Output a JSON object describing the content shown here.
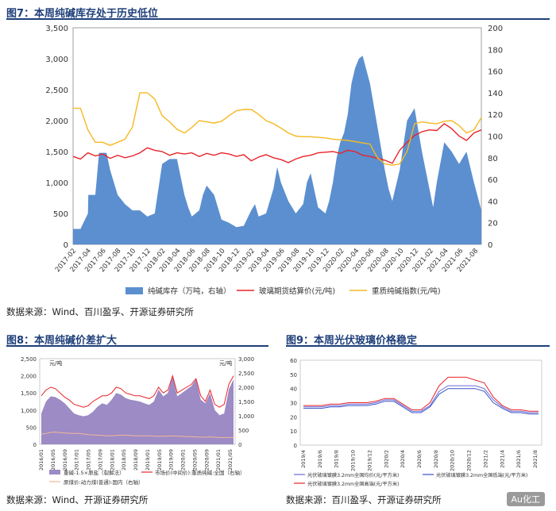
{
  "fig7": {
    "title": "图7：本周纯碱库存处于历史低位",
    "source": "数据来源：Wind、百川盈孚、开源证券研究所"
  },
  "fig8": {
    "title": "图8：本周纯碱价差扩大",
    "source": "数据来源：Wind、开源证券研究所"
  },
  "fig9": {
    "title": "图9：本周光伏玻璃价格稳定",
    "source": "数据来源：百川盈孚、开源证券研究所"
  },
  "watermark": "Au化工",
  "colors": {
    "title": "#1e3f7a",
    "inventory": "#5b8fd0",
    "glass": "#e8242a",
    "soda": "#f5b921",
    "spread": "#9c8bc4",
    "fig8line": "#e8242a",
    "coal": "#f2b79a"
  },
  "chart_data": [
    {
      "id": "fig7",
      "type": "area+line",
      "title": "本周纯碱库存处于历史低位",
      "y_left": {
        "min": 0,
        "max": 3500,
        "ticks": [
          "0",
          "500",
          "1,000",
          "1,500",
          "2,000",
          "2,500",
          "3,000",
          "3,500"
        ]
      },
      "y_right": {
        "min": 0,
        "max": 200,
        "ticks": [
          "0",
          "20",
          "40",
          "60",
          "80",
          "100",
          "120",
          "140",
          "160",
          "180",
          "200"
        ]
      },
      "x_labels": [
        "2017-02",
        "2017-04",
        "2017-06",
        "2017-08",
        "2017-10",
        "2017-12",
        "2018-02",
        "2018-04",
        "2018-06",
        "2018-08",
        "2018-10",
        "2018-12",
        "2019-02",
        "2019-04",
        "2019-06",
        "2019-08",
        "2019-10",
        "2019-12",
        "2020-02",
        "2020-04",
        "2020-06",
        "2020-08",
        "2020-10",
        "2020-12",
        "2021-02",
        "2021-04",
        "2021-06",
        "2021-08"
      ],
      "x_range": [
        0,
        55
      ],
      "series": [
        {
          "name": "纯碱库存（万吨，右轴）",
          "kind": "area",
          "axis": "left",
          "x": [
            0,
            1,
            2,
            2.05,
            3,
            3.5,
            4,
            4.5,
            5,
            6,
            7,
            8,
            9,
            10,
            11,
            11.5,
            12,
            13,
            14,
            15,
            15.5,
            16,
            17,
            17.5,
            18,
            19,
            20,
            21,
            22,
            23,
            24,
            24.5,
            25,
            26,
            27,
            27.5,
            28,
            29,
            30,
            31,
            31.5,
            32,
            33,
            34,
            34.5,
            35,
            35.5,
            36,
            36.5,
            37,
            37.5,
            38,
            38.5,
            39,
            40,
            41,
            42,
            42.5,
            43,
            44,
            45,
            46,
            47,
            48,
            48.5,
            49,
            50,
            51,
            52,
            53,
            54,
            55
          ],
          "y": [
            250,
            250,
            500,
            800,
            800,
            1480,
            1480,
            1480,
            1200,
            800,
            650,
            550,
            550,
            450,
            500,
            900,
            1300,
            1380,
            1380,
            800,
            600,
            450,
            550,
            800,
            950,
            800,
            400,
            350,
            280,
            300,
            550,
            650,
            450,
            500,
            900,
            1250,
            1000,
            700,
            500,
            650,
            1000,
            1150,
            600,
            500,
            700,
            1000,
            1400,
            1650,
            1800,
            2100,
            2600,
            2850,
            3000,
            3050,
            2600,
            1900,
            1200,
            900,
            700,
            1200,
            2000,
            2200,
            1500,
            900,
            600,
            1000,
            1650,
            1500,
            1300,
            1500,
            1000,
            550
          ]
        },
        {
          "name": "玻璃期货结算价(元/吨)",
          "kind": "line",
          "axis": "left",
          "x": [
            0,
            1,
            2,
            3,
            4,
            5,
            6,
            7,
            8,
            9,
            10,
            11,
            12,
            13,
            14,
            15,
            16,
            17,
            18,
            19,
            20,
            21,
            22,
            23,
            24,
            25,
            26,
            27,
            28,
            29,
            30,
            31,
            32,
            33,
            34,
            35,
            36,
            37,
            38,
            39,
            40,
            41,
            42,
            43,
            44,
            45,
            46,
            47,
            48,
            49,
            50,
            51,
            52,
            53,
            54,
            55
          ],
          "y": [
            1420,
            1380,
            1480,
            1430,
            1460,
            1390,
            1440,
            1400,
            1430,
            1480,
            1560,
            1520,
            1500,
            1440,
            1480,
            1460,
            1480,
            1420,
            1470,
            1440,
            1480,
            1460,
            1420,
            1450,
            1350,
            1410,
            1450,
            1400,
            1370,
            1320,
            1380,
            1420,
            1440,
            1480,
            1490,
            1500,
            1470,
            1520,
            1500,
            1440,
            1420,
            1390,
            1360,
            1310,
            1520,
            1650,
            1760,
            1820,
            1850,
            1840,
            1950,
            1870,
            1750,
            1680,
            1800,
            1850
          ]
        },
        {
          "name": "重质纯碱指数(元/吨)",
          "kind": "line",
          "axis": "left",
          "x": [
            0,
            1,
            2,
            3,
            4,
            5,
            6,
            7,
            8,
            9,
            10,
            11,
            12,
            13,
            14,
            15,
            16,
            17,
            18,
            19,
            20,
            21,
            22,
            23,
            24,
            25,
            26,
            27,
            28,
            29,
            30,
            31,
            32,
            33,
            34,
            35,
            36,
            37,
            38,
            39,
            40,
            41,
            42,
            43,
            44,
            45,
            46,
            47,
            48,
            49,
            50,
            51,
            52,
            53,
            54,
            55
          ],
          "y": [
            2200,
            2200,
            1850,
            1650,
            1650,
            1600,
            1650,
            1700,
            1900,
            2450,
            2450,
            2350,
            2080,
            1980,
            1860,
            1800,
            1890,
            2000,
            1980,
            1960,
            1990,
            2080,
            2160,
            2180,
            2180,
            2100,
            2000,
            1950,
            1880,
            1800,
            1750,
            1740,
            1740,
            1730,
            1720,
            1700,
            1690,
            1680,
            1660,
            1640,
            1620,
            1400,
            1300,
            1280,
            1300,
            1500,
            1950,
            1980,
            1960,
            1950,
            1990,
            2000,
            1920,
            1800,
            1850,
            2050
          ]
        }
      ]
    },
    {
      "id": "fig8",
      "type": "area+line",
      "unit_left": "元/吨",
      "unit_right": "元/吨",
      "y_left": {
        "min": 0,
        "max": 2500,
        "ticks": [
          "0",
          "500",
          "1,000",
          "1,500",
          "2,000",
          "2,500"
        ]
      },
      "y_right": {
        "min": 0,
        "max": 3000,
        "ticks": [
          "0",
          "500",
          "1,000",
          "1,500",
          "2,000",
          "2,500",
          "3,000"
        ]
      },
      "x_labels": [
        "2016/01",
        "2016/05",
        "2016/09",
        "2017/01",
        "2017/05",
        "2017/09",
        "2018/01",
        "2018/05",
        "2018/09",
        "2019/01",
        "2019/05",
        "2019/09",
        "2020/01",
        "2020/05",
        "2020/09",
        "2021/01",
        "2021/05"
      ],
      "series": [
        {
          "name": "重碱-1.5×原盐（裂解法）",
          "kind": "area",
          "values": [
            900,
            1250,
            1400,
            1380,
            1300,
            1200,
            1050,
            900,
            850,
            820,
            850,
            950,
            1100,
            1200,
            1150,
            1300,
            1500,
            1450,
            1350,
            1300,
            1280,
            1250,
            1200,
            1150,
            1250,
            1600,
            1400,
            1500,
            2000,
            1400,
            1500,
            1600,
            1700,
            1900,
            1300,
            1200,
            1500,
            1000,
            850,
            900,
            1600,
            1900
          ]
        },
        {
          "name": "市场价(中间价):重质纯碱:全国（右轴）",
          "kind": "line",
          "values": [
            1700,
            1900,
            2000,
            1950,
            1800,
            1650,
            1550,
            1400,
            1350,
            1300,
            1350,
            1500,
            1600,
            1700,
            1700,
            1800,
            2000,
            1950,
            1800,
            1750,
            1700,
            1700,
            1650,
            1600,
            1700,
            2000,
            1800,
            1900,
            2400,
            1800,
            1900,
            2000,
            2100,
            2300,
            1700,
            1500,
            1900,
            1400,
            1300,
            1400,
            2100,
            2400
          ]
        },
        {
          "name": "原煤价:动力煤(普通):国内（右轴）",
          "kind": "line",
          "values": [
            350,
            380,
            420,
            430,
            410,
            400,
            390,
            380,
            380,
            360,
            340,
            330,
            320,
            310,
            300,
            300,
            310,
            320,
            320,
            310,
            300,
            300,
            300,
            300,
            290,
            280,
            280,
            290,
            300,
            290,
            280,
            270,
            270,
            260,
            250,
            250,
            260,
            250,
            240,
            240,
            240,
            240
          ]
        }
      ]
    },
    {
      "id": "fig9",
      "type": "line",
      "y": {
        "min": 0,
        "max": 60,
        "ticks": [
          "0",
          "10",
          "20",
          "30",
          "40",
          "50",
          "60"
        ]
      },
      "x_labels": [
        "2019/4",
        "2019/6",
        "2019/8",
        "2019/10",
        "2019/12",
        "2020/2",
        "2020/4",
        "2020/6",
        "2020/8",
        "2020/10",
        "2020/12",
        "2021/2",
        "2021/4",
        "2021/6",
        "2021/8"
      ],
      "series": [
        {
          "name": "光伏玻璃镀膜3.2mm全国均价(元/平方米)",
          "values": [
            27,
            27,
            27,
            28,
            28,
            29,
            29,
            29,
            30,
            32,
            32,
            28,
            24,
            24,
            28,
            38,
            42,
            42,
            42,
            42,
            40,
            32,
            27,
            24,
            24,
            23,
            23
          ]
        },
        {
          "name": "光伏玻璃镀膜3.2mm全国低端(元/平方米)",
          "values": [
            26,
            26,
            26,
            27,
            27,
            28,
            28,
            28,
            29,
            31,
            31,
            27,
            23,
            23,
            27,
            36,
            40,
            40,
            40,
            40,
            38,
            30,
            26,
            23,
            23,
            22,
            22
          ]
        },
        {
          "name": "光伏玻璃镀膜3.2mm全国高端(元/平方米)",
          "values": [
            28,
            28,
            28,
            29,
            29,
            30,
            30,
            30,
            31,
            33,
            33,
            29,
            25,
            25,
            30,
            42,
            48,
            48,
            48,
            46,
            44,
            34,
            28,
            25,
            25,
            24,
            24
          ]
        }
      ]
    }
  ]
}
